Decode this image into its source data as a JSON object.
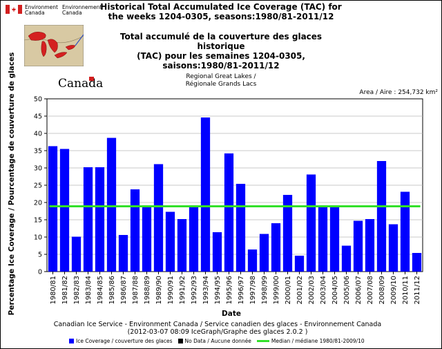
{
  "header": {
    "dept_en_1": "Environment",
    "dept_en_2": "Canada",
    "dept_fr_1": "Environnement",
    "dept_fr_2": "Canada",
    "title_en_1": "Historical Total Accumulated Ice Coverage (TAC) for",
    "title_en_2": "the weeks 1204-0305, seasons:1980/81-2011/12",
    "title_fr_1": "Total accumulé de la couverture des glaces historique",
    "title_fr_2": "(TAC) pour les semaines 1204-0305,",
    "title_fr_3": "saisons:1980/81-2011/12",
    "wordmark": "Canada",
    "region_1": "Regional Great Lakes /",
    "region_2": "Régionale Grands Lacs",
    "area": "Area / Aire : 254,732 km²"
  },
  "footer": {
    "line1": "Canadian Ice Service - Environment Canada / Service canadien des glaces - Environnement Canada",
    "line2": "(2012-03-07 08:09 IceGraph/Graphe des glaces 2.0.2 )"
  },
  "legend": {
    "ice": "Ice Coverage / couverture des glaces",
    "nodata": "No Data / Aucune donnée",
    "median": "Median / médiane 1980/81-2009/10"
  },
  "colors": {
    "bar": "#0000ff",
    "median": "#33e02a",
    "nodata": "#000000"
  },
  "chart_data": {
    "type": "bar",
    "xlabel": "Date",
    "ylabel": "Percentage Ice Coverage / Pourcentage de couverture de glaces",
    "ylim": [
      0,
      50
    ],
    "yticks": [
      0,
      5,
      10,
      15,
      20,
      25,
      30,
      35,
      40,
      45,
      50
    ],
    "grid": true,
    "median": 18.9,
    "categories": [
      "1980/81",
      "1981/82",
      "1982/83",
      "1983/84",
      "1984/85",
      "1985/86",
      "1986/87",
      "1987/88",
      "1988/89",
      "1989/90",
      "1990/91",
      "1991/92",
      "1992/93",
      "1993/94",
      "1994/95",
      "1995/96",
      "1996/97",
      "1997/98",
      "1998/99",
      "1999/00",
      "2000/01",
      "2001/02",
      "2002/03",
      "2003/04",
      "2004/05",
      "2005/06",
      "2006/07",
      "2007/08",
      "2008/09",
      "2009/10",
      "2010/11",
      "2011/12"
    ],
    "values": [
      36.3,
      35.5,
      10.1,
      30.2,
      30.2,
      38.7,
      10.6,
      23.8,
      18.7,
      31.1,
      17.3,
      15.2,
      18.9,
      44.6,
      11.4,
      34.2,
      25.4,
      6.4,
      10.9,
      14.0,
      22.2,
      4.6,
      28.1,
      18.9,
      18.9,
      7.5,
      14.7,
      15.2,
      32.0,
      13.7,
      23.1,
      5.4
    ]
  }
}
